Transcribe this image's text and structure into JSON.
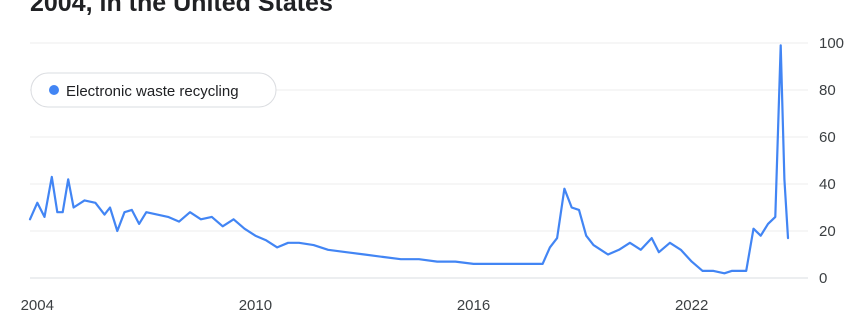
{
  "chart_data": {
    "type": "line",
    "title": "2004, in the United States",
    "xlabel": "",
    "ylabel": "",
    "xlim": [
      2003.8,
      2025.2
    ],
    "ylim": [
      0,
      100
    ],
    "x_ticks": [
      {
        "value": 2004,
        "label": "2004"
      },
      {
        "value": 2010,
        "label": "2010"
      },
      {
        "value": 2016,
        "label": "2016"
      },
      {
        "value": 2022,
        "label": "2022"
      }
    ],
    "y_ticks": [
      {
        "value": 0,
        "label": "0"
      },
      {
        "value": 20,
        "label": "20"
      },
      {
        "value": 40,
        "label": "40"
      },
      {
        "value": 60,
        "label": "60"
      },
      {
        "value": 80,
        "label": "80"
      },
      {
        "value": 100,
        "label": "100"
      }
    ],
    "grid": true,
    "legend_position": "top-left",
    "series": [
      {
        "name": "Electronic waste recycling",
        "color": "#4285f4",
        "points": [
          [
            2003.8,
            25
          ],
          [
            2004.0,
            32
          ],
          [
            2004.2,
            26
          ],
          [
            2004.4,
            43
          ],
          [
            2004.55,
            28
          ],
          [
            2004.7,
            28
          ],
          [
            2004.85,
            42
          ],
          [
            2005.0,
            30
          ],
          [
            2005.3,
            33
          ],
          [
            2005.6,
            32
          ],
          [
            2005.85,
            27
          ],
          [
            2006.0,
            30
          ],
          [
            2006.2,
            20
          ],
          [
            2006.4,
            28
          ],
          [
            2006.6,
            29
          ],
          [
            2006.8,
            23
          ],
          [
            2007.0,
            28
          ],
          [
            2007.3,
            27
          ],
          [
            2007.6,
            26
          ],
          [
            2007.9,
            24
          ],
          [
            2008.2,
            28
          ],
          [
            2008.5,
            25
          ],
          [
            2008.8,
            26
          ],
          [
            2009.1,
            22
          ],
          [
            2009.4,
            25
          ],
          [
            2009.7,
            21
          ],
          [
            2010.0,
            18
          ],
          [
            2010.3,
            16
          ],
          [
            2010.6,
            13
          ],
          [
            2010.9,
            15
          ],
          [
            2011.2,
            15
          ],
          [
            2011.6,
            14
          ],
          [
            2012.0,
            12
          ],
          [
            2012.5,
            11
          ],
          [
            2013.0,
            10
          ],
          [
            2013.5,
            9
          ],
          [
            2014.0,
            8
          ],
          [
            2014.5,
            8
          ],
          [
            2015.0,
            7
          ],
          [
            2015.5,
            7
          ],
          [
            2016.0,
            6
          ],
          [
            2016.5,
            6
          ],
          [
            2017.0,
            6
          ],
          [
            2017.5,
            6
          ],
          [
            2017.9,
            6
          ],
          [
            2018.1,
            13
          ],
          [
            2018.3,
            17
          ],
          [
            2018.5,
            38
          ],
          [
            2018.7,
            30
          ],
          [
            2018.9,
            29
          ],
          [
            2019.1,
            18
          ],
          [
            2019.3,
            14
          ],
          [
            2019.5,
            12
          ],
          [
            2019.7,
            10
          ],
          [
            2020.0,
            12
          ],
          [
            2020.3,
            15
          ],
          [
            2020.6,
            12
          ],
          [
            2020.9,
            17
          ],
          [
            2021.1,
            11
          ],
          [
            2021.4,
            15
          ],
          [
            2021.7,
            12
          ],
          [
            2022.0,
            7
          ],
          [
            2022.3,
            3
          ],
          [
            2022.6,
            3
          ],
          [
            2022.9,
            2
          ],
          [
            2023.1,
            3
          ],
          [
            2023.3,
            3
          ],
          [
            2023.5,
            3
          ],
          [
            2023.7,
            21
          ],
          [
            2023.9,
            18
          ],
          [
            2024.1,
            23
          ],
          [
            2024.3,
            26
          ],
          [
            2024.45,
            99
          ],
          [
            2024.55,
            42
          ],
          [
            2024.65,
            17
          ]
        ]
      }
    ]
  }
}
